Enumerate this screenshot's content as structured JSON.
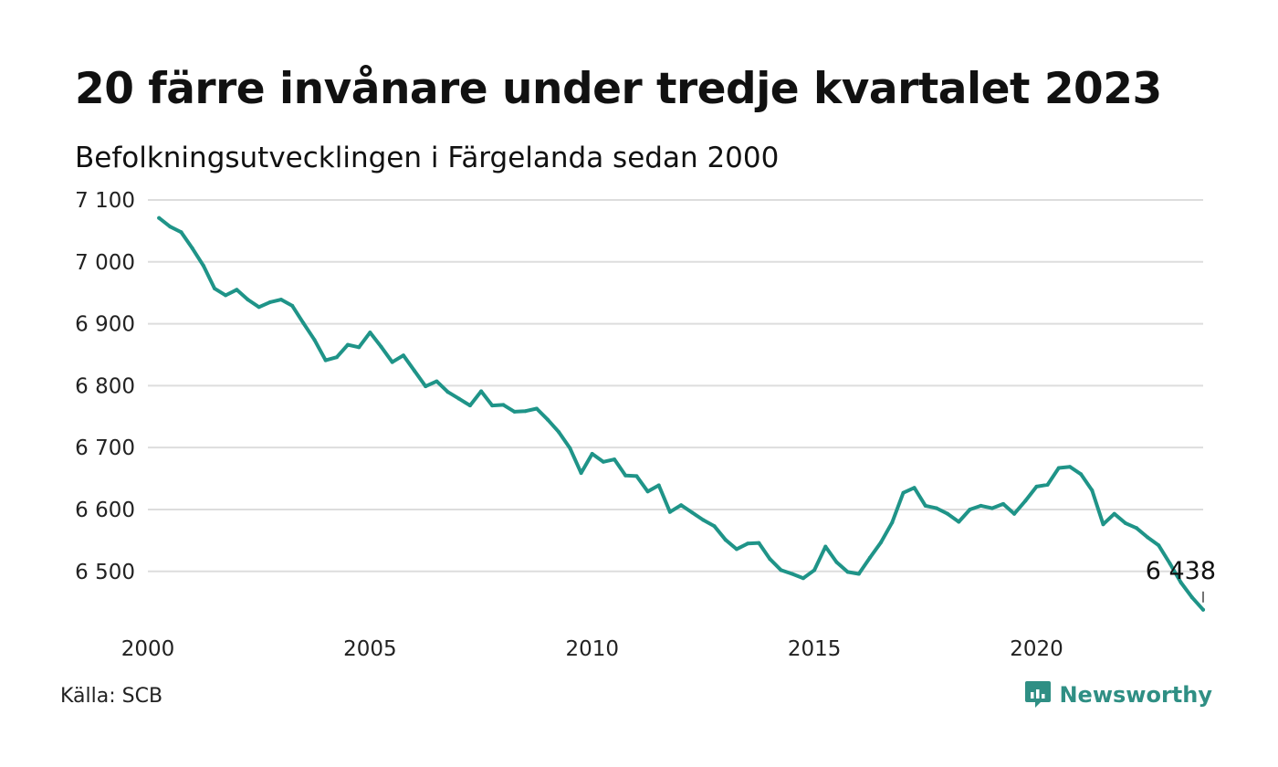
{
  "title": "20 färre invånare under tredje kvartalet 2023",
  "subtitle": "Befolkningsutvecklingen i Färgelanda sedan 2000",
  "source": "Källa: SCB",
  "brand": {
    "name": "Newsworthy",
    "icon": "newsworthy-logo-icon",
    "color": "#2f8f84"
  },
  "colors": {
    "line": "#1f9488",
    "grid": "#dddddd",
    "text": "#111111"
  },
  "chart_data": {
    "type": "line",
    "x_tick_labels": [
      "2000",
      "2005",
      "2010",
      "2015",
      "2020"
    ],
    "y_tick_labels": [
      "6 500",
      "6 600",
      "6 700",
      "6 800",
      "6 900",
      "7 000",
      "7 100"
    ],
    "ylim": [
      6420,
      7100
    ],
    "xlim": [
      2000,
      2023.75
    ],
    "grid": "horizontal",
    "last_label": "6 438",
    "series": [
      {
        "color": "#1f9488",
        "x": [
          2000.25,
          2000.5,
          2000.75,
          2001.0,
          2001.25,
          2001.5,
          2001.75,
          2002.0,
          2002.25,
          2002.5,
          2002.75,
          2003.0,
          2003.25,
          2003.5,
          2003.75,
          2004.0,
          2004.25,
          2004.5,
          2004.75,
          2005.0,
          2005.25,
          2005.5,
          2005.75,
          2006.0,
          2006.25,
          2006.5,
          2006.75,
          2007.0,
          2007.25,
          2007.5,
          2007.75,
          2008.0,
          2008.25,
          2008.5,
          2008.75,
          2009.0,
          2009.25,
          2009.5,
          2009.75,
          2010.0,
          2010.25,
          2010.5,
          2010.75,
          2011.0,
          2011.25,
          2011.5,
          2011.75,
          2012.0,
          2012.25,
          2012.5,
          2012.75,
          2013.0,
          2013.25,
          2013.5,
          2013.75,
          2014.0,
          2014.25,
          2014.5,
          2014.75,
          2015.0,
          2015.25,
          2015.5,
          2015.75,
          2016.0,
          2016.25,
          2016.5,
          2016.75,
          2017.0,
          2017.25,
          2017.5,
          2017.75,
          2018.0,
          2018.25,
          2018.5,
          2018.75,
          2019.0,
          2019.25,
          2019.5,
          2019.75,
          2020.0,
          2020.25,
          2020.5,
          2020.75,
          2021.0,
          2021.25,
          2021.5,
          2021.75,
          2022.0,
          2022.25,
          2022.5,
          2022.75,
          2023.0,
          2023.25,
          2023.5,
          2023.75
        ],
        "values": [
          7071,
          7057,
          7048,
          7022,
          6994,
          6957,
          6946,
          6955,
          6939,
          6927,
          6935,
          6939,
          6929,
          6901,
          6874,
          6841,
          6846,
          6866,
          6862,
          6886,
          6863,
          6838,
          6849,
          6824,
          6799,
          6807,
          6790,
          6779,
          6768,
          6791,
          6768,
          6769,
          6758,
          6759,
          6763,
          6745,
          6725,
          6699,
          6659,
          6690,
          6677,
          6681,
          6655,
          6654,
          6629,
          6639,
          6596,
          6607,
          6595,
          6583,
          6573,
          6551,
          6536,
          6545,
          6546,
          6520,
          6502,
          6496,
          6489,
          6502,
          6540,
          6515,
          6499,
          6496,
          6522,
          6547,
          6579,
          6627,
          6635,
          6606,
          6602,
          6593,
          6580,
          6600,
          6606,
          6602,
          6609,
          6593,
          6614,
          6637,
          6640,
          6667,
          6669,
          6657,
          6631,
          6576,
          6593,
          6578,
          6570,
          6555,
          6542,
          6513,
          6482,
          6458,
          6438
        ]
      }
    ]
  }
}
